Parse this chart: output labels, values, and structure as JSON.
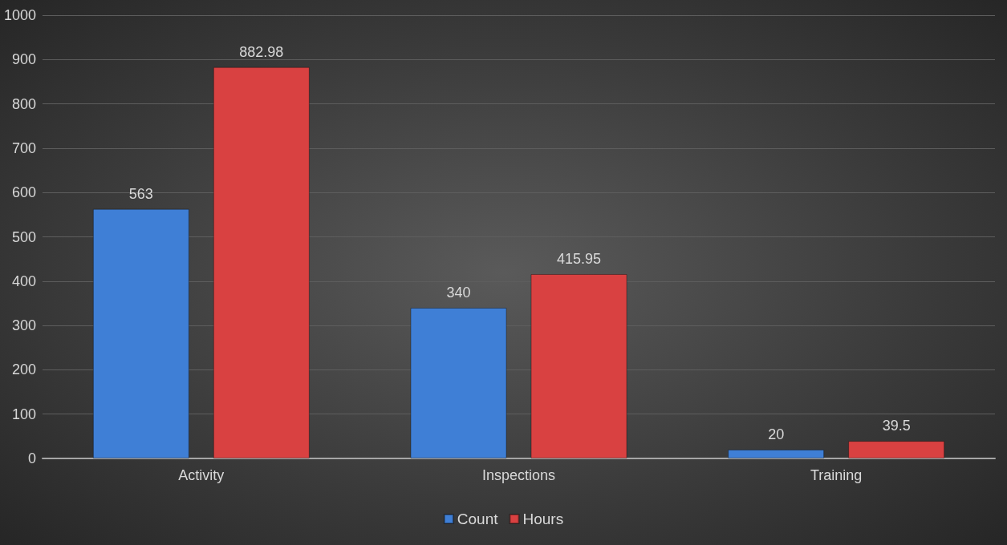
{
  "chart_data": {
    "type": "bar",
    "categories": [
      "Activity",
      "Inspections",
      "Training"
    ],
    "series": [
      {
        "name": "Count",
        "color": "#3f7fd6",
        "values": [
          563,
          340,
          20
        ]
      },
      {
        "name": "Hours",
        "color": "#d94141",
        "values": [
          882.98,
          415.95,
          39.5
        ]
      }
    ],
    "ylim": [
      0,
      1000
    ],
    "yticks": [
      0,
      100,
      200,
      300,
      400,
      500,
      600,
      700,
      800,
      900,
      1000
    ],
    "grid": "y",
    "legend": "bottom",
    "data_labels": true
  }
}
